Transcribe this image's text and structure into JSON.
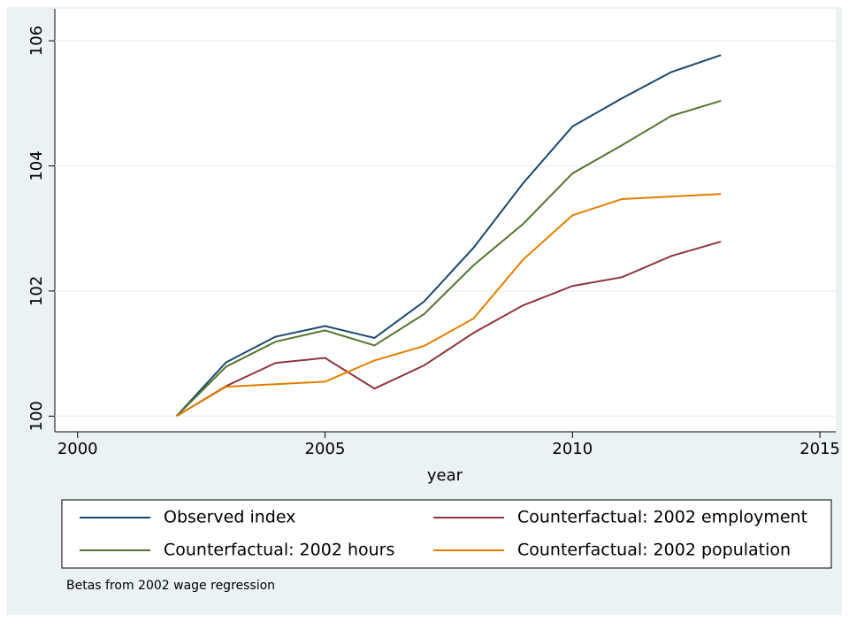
{
  "chart_data": {
    "type": "line",
    "x": [
      2002,
      2003,
      2004,
      2005,
      2006,
      2007,
      2008,
      2009,
      2010,
      2011,
      2012,
      2013
    ],
    "series": [
      {
        "name": "Observed index",
        "color": "#1a476f",
        "values": [
          100,
          100.86,
          101.27,
          101.44,
          101.25,
          101.83,
          102.69,
          103.72,
          104.63,
          105.08,
          105.5,
          105.77
        ]
      },
      {
        "name": "Counterfactual: 2002 employment",
        "color": "#90353b",
        "values": [
          100,
          100.48,
          100.85,
          100.93,
          100.44,
          100.81,
          101.33,
          101.77,
          102.08,
          102.22,
          102.56,
          102.79
        ]
      },
      {
        "name": "Counterfactual: 2002 hours",
        "color": "#55752f",
        "values": [
          100,
          100.79,
          101.19,
          101.37,
          101.13,
          101.63,
          102.41,
          103.07,
          103.88,
          104.33,
          104.8,
          105.04
        ]
      },
      {
        "name": "Counterfactual: 2002 population",
        "color": "#e37e00",
        "values": [
          100,
          100.47,
          100.51,
          100.55,
          100.89,
          101.12,
          101.56,
          102.5,
          103.21,
          103.47,
          103.51,
          103.55
        ]
      }
    ],
    "xlabel": "year",
    "xlim": [
      1999.54,
      2015.32
    ],
    "xticks": [
      2000,
      2005,
      2010,
      2015
    ],
    "ylim": [
      99.75,
      106.51
    ],
    "yticks": [
      100,
      102,
      104,
      106
    ],
    "grid": true,
    "note": "Betas from 2002 wage regression"
  }
}
